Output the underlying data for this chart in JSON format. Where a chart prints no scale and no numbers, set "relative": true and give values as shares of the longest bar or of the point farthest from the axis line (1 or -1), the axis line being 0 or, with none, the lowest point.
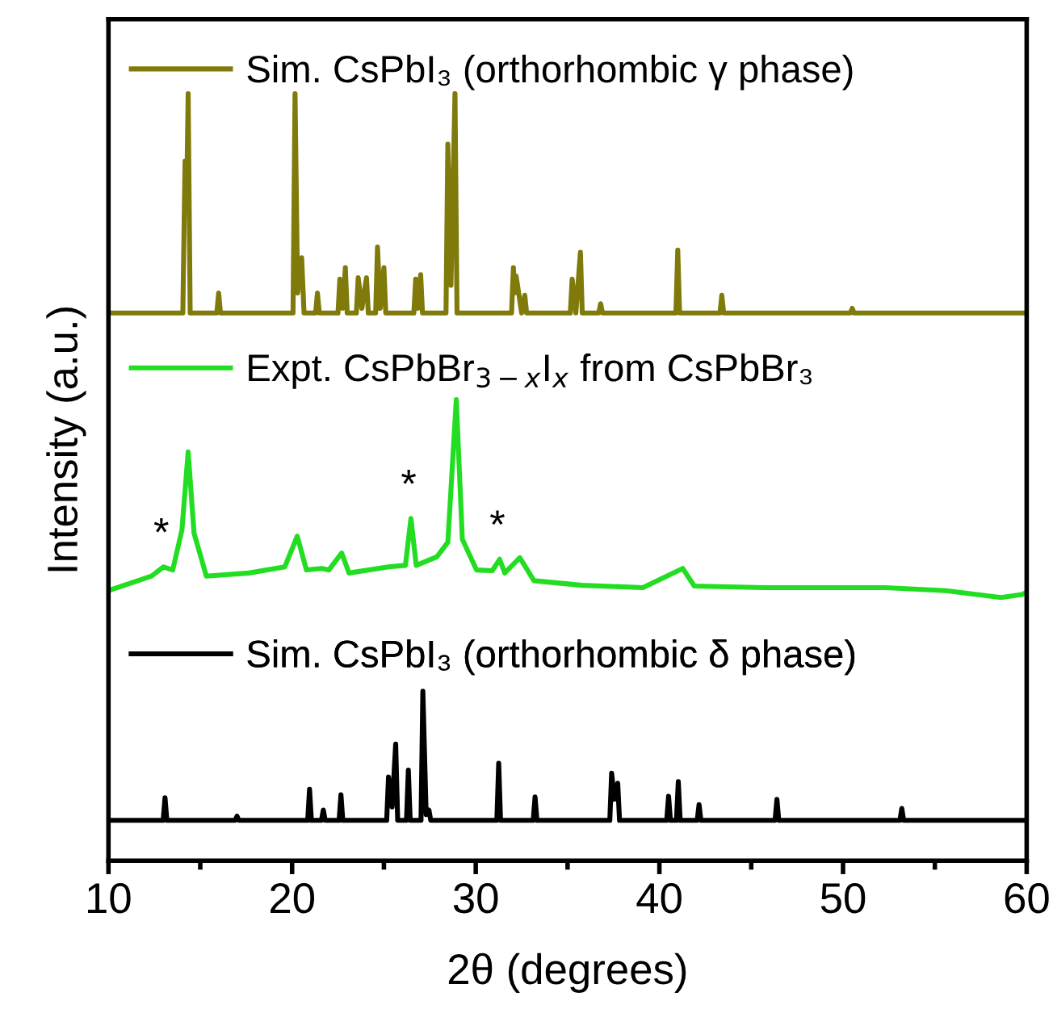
{
  "chart_data": {
    "type": "line",
    "relative": true,
    "xlabel": "2θ (degrees)",
    "ylabel": "Intensity (a.u.)",
    "xlim": [
      10,
      60
    ],
    "xticks": [
      10,
      {
        "value": 15,
        "label": null
      },
      20,
      {
        "value": 25,
        "label": null
      },
      30,
      {
        "value": 35,
        "label": null
      },
      40,
      {
        "value": 45,
        "label": null
      },
      50,
      {
        "value": 55,
        "label": null
      },
      60
    ],
    "legend": "top left",
    "grid": false,
    "marker": "none",
    "line_style": "solid",
    "series": [
      {
        "name": "Sim. CsPbI₃ (orthorhombic γ phase)",
        "color": "#7f7a0a",
        "x": [
          10,
          14.05,
          14.17,
          14.25,
          14.34,
          14.45,
          15.9,
          16.0,
          16.1,
          20.05,
          20.16,
          20.3,
          20.52,
          20.65,
          21.28,
          21.38,
          21.48,
          22.5,
          22.6,
          22.75,
          22.9,
          23.0,
          23.5,
          23.6,
          23.8,
          24.05,
          24.15,
          24.55,
          24.65,
          24.8,
          25.0,
          25.1,
          26.63,
          26.73,
          26.85,
          27.0,
          27.1,
          28.38,
          28.48,
          28.65,
          28.87,
          28.98,
          31.95,
          32.05,
          32.12,
          32.2,
          32.5,
          32.67,
          32.77,
          35.15,
          35.25,
          35.45,
          35.7,
          35.8,
          36.7,
          36.8,
          36.9,
          40.9,
          41.0,
          41.1,
          43.3,
          43.4,
          43.5,
          50.4,
          50.5,
          50.6,
          60
        ],
        "values": [
          0.714,
          0.714,
          0.912,
          0.85,
          1.0,
          0.714,
          0.714,
          0.74,
          0.714,
          0.714,
          1.0,
          0.74,
          0.786,
          0.714,
          0.714,
          0.74,
          0.714,
          0.714,
          0.758,
          0.72,
          0.773,
          0.714,
          0.714,
          0.76,
          0.72,
          0.76,
          0.714,
          0.714,
          0.8,
          0.72,
          0.773,
          0.714,
          0.714,
          0.758,
          0.72,
          0.764,
          0.714,
          0.714,
          0.934,
          0.75,
          1.0,
          0.714,
          0.714,
          0.773,
          0.74,
          0.762,
          0.714,
          0.737,
          0.714,
          0.714,
          0.758,
          0.714,
          0.793,
          0.714,
          0.714,
          0.726,
          0.714,
          0.714,
          0.796,
          0.714,
          0.714,
          0.737,
          0.714,
          0.714,
          0.72,
          0.714,
          0.714
        ]
      },
      {
        "name": "Expt. CsPbBr$_{3−x}$I$_{x}$ from CsPbBr₃",
        "color": "#22dd22",
        "x": [
          10,
          12.35,
          13.0,
          13.5,
          14.0,
          14.34,
          14.66,
          15.33,
          17.65,
          19.6,
          20.28,
          20.78,
          21.6,
          22.0,
          22.7,
          23.1,
          25.25,
          26.17,
          26.47,
          26.76,
          27.88,
          28.48,
          28.94,
          29.27,
          30.04,
          30.9,
          31.3,
          31.58,
          32.4,
          33.17,
          35.8,
          39.1,
          41.27,
          41.9,
          45.7,
          52.3,
          55.6,
          58.6,
          59.75,
          60
        ],
        "values": [
          0.352,
          0.371,
          0.383,
          0.379,
          0.431,
          0.533,
          0.427,
          0.371,
          0.375,
          0.383,
          0.423,
          0.379,
          0.381,
          0.379,
          0.401,
          0.375,
          0.383,
          0.385,
          0.446,
          0.385,
          0.396,
          0.415,
          0.601,
          0.419,
          0.379,
          0.378,
          0.393,
          0.375,
          0.395,
          0.365,
          0.359,
          0.356,
          0.381,
          0.358,
          0.356,
          0.356,
          0.352,
          0.343,
          0.347,
          0.35
        ]
      },
      {
        "name": "Sim. CsPbI₃ (orthorhombic δ phase)",
        "color": "#000000",
        "x": [
          10,
          12.98,
          13.08,
          13.18,
          16.9,
          17.0,
          17.1,
          20.85,
          20.95,
          21.05,
          21.6,
          21.7,
          21.8,
          22.56,
          22.66,
          22.76,
          25.15,
          25.25,
          25.45,
          25.64,
          25.75,
          26.23,
          26.33,
          26.43,
          27.02,
          27.12,
          27.3,
          27.45,
          27.55,
          31.15,
          31.25,
          31.35,
          33.13,
          33.23,
          33.33,
          37.3,
          37.4,
          37.55,
          37.73,
          37.83,
          40.4,
          40.5,
          40.6,
          40.93,
          41.03,
          41.13,
          42.06,
          42.16,
          42.26,
          46.3,
          46.4,
          46.5,
          53.1,
          53.2,
          53.3,
          60
        ],
        "values": [
          0.0526,
          0.0526,
          0.082,
          0.0526,
          0.0526,
          0.058,
          0.0526,
          0.0526,
          0.093,
          0.0526,
          0.0526,
          0.066,
          0.0526,
          0.0526,
          0.086,
          0.0526,
          0.0526,
          0.109,
          0.07,
          0.152,
          0.0526,
          0.0526,
          0.118,
          0.0526,
          0.0526,
          0.221,
          0.06,
          0.066,
          0.0526,
          0.0526,
          0.127,
          0.0526,
          0.0526,
          0.083,
          0.0526,
          0.0526,
          0.114,
          0.08,
          0.101,
          0.0526,
          0.0526,
          0.084,
          0.0526,
          0.0526,
          0.103,
          0.0526,
          0.0526,
          0.073,
          0.0526,
          0.0526,
          0.08,
          0.0526,
          0.0526,
          0.068,
          0.0526,
          0.0526
        ]
      }
    ],
    "annotations": [
      {
        "text": "*",
        "x": 13.0,
        "y": 0.383
      },
      {
        "text": "*",
        "x": 26.47,
        "y": 0.446
      },
      {
        "text": "*",
        "x": 31.3,
        "y": 0.393
      }
    ]
  }
}
